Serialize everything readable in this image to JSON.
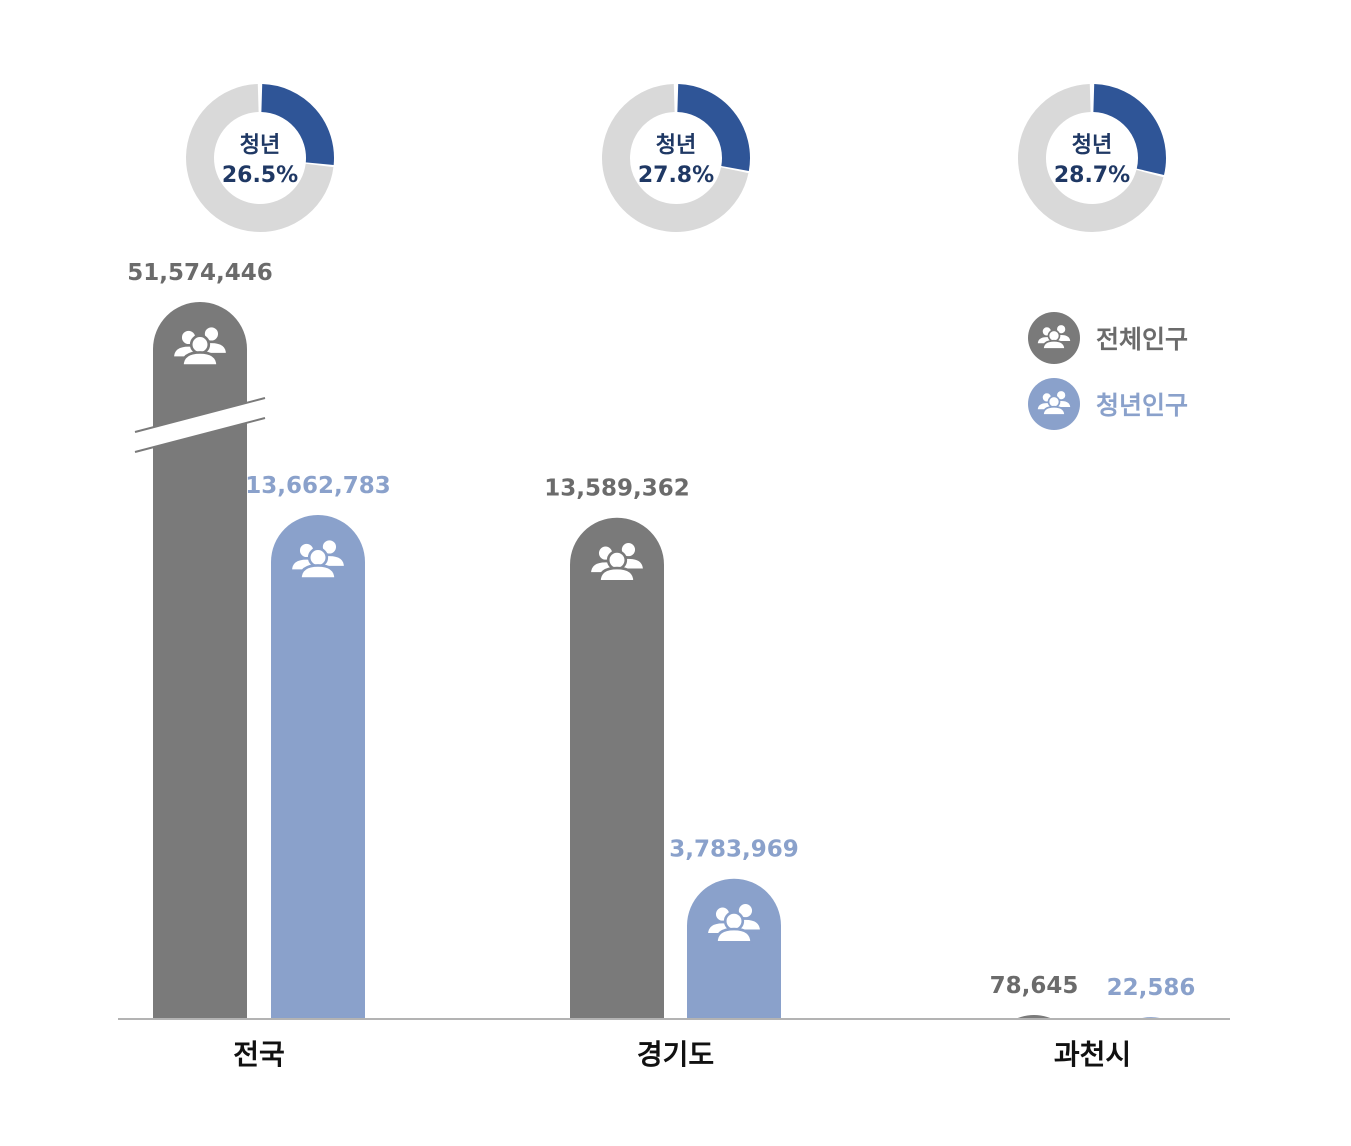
{
  "chart_data": {
    "type": "bar",
    "categories": [
      "전국",
      "경기도",
      "과천시"
    ],
    "series": [
      {
        "name": "전체인구",
        "values": [
          51574446,
          13589362,
          78645
        ],
        "labels": [
          "51,574,446",
          "13,589,362",
          "78,645"
        ]
      },
      {
        "name": "청년인구",
        "values": [
          13662783,
          3783969,
          22586
        ],
        "labels": [
          "13,662,783",
          "3,783,969",
          "22,586"
        ]
      }
    ],
    "axis_break": true,
    "donuts": [
      {
        "label": "청년",
        "value_text": "26.5%",
        "value": 26.5
      },
      {
        "label": "청년",
        "value_text": "27.8%",
        "value": 27.8
      },
      {
        "label": "청년",
        "value_text": "28.7%",
        "value": 28.7
      }
    ],
    "legend_position": "right",
    "colors": {
      "total": "#7a7a7a",
      "youth": "#8aa1cb",
      "donut_fill": "#2f5597",
      "donut_track": "#d9d9d9",
      "donut_text": "#1f3864",
      "category_text": "#111111",
      "axis": "#9a9a9a"
    },
    "icons": {
      "bar": "people-icon",
      "legend": "people-icon"
    }
  },
  "legend": {
    "items": [
      {
        "label": "전체인구",
        "color": "#7a7a7a",
        "text_color": "#6b6b6b"
      },
      {
        "label": "청년인구",
        "color": "#8aa1cb",
        "text_color": "#8aa1cb"
      }
    ]
  }
}
